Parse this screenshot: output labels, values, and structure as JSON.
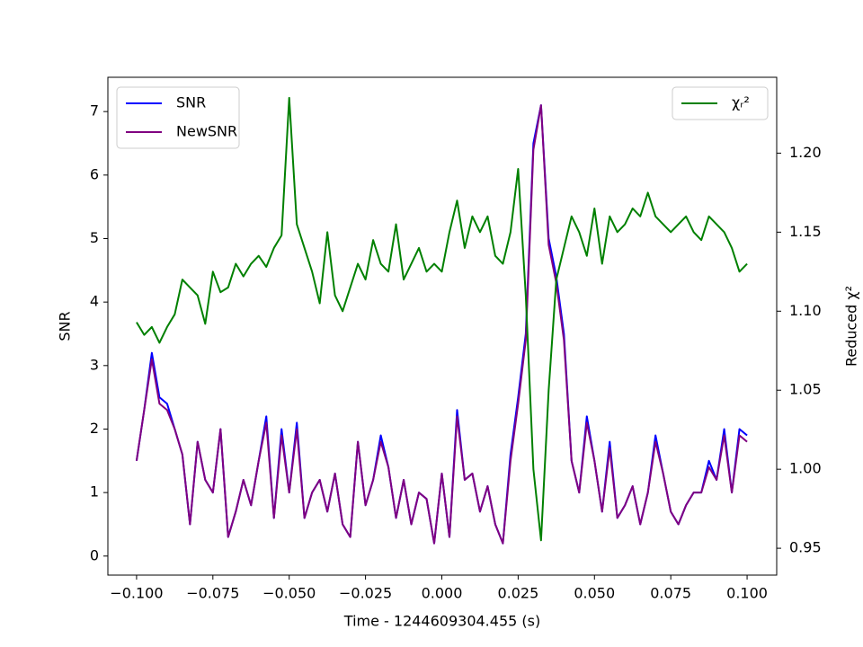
{
  "chart_data": {
    "type": "line",
    "x_label": "Time - 1244609304.455 (s)",
    "y_label": "SNR",
    "y2_label": "Reduced χ²",
    "x": [
      -0.1,
      -0.0975,
      -0.095,
      -0.0925,
      -0.09,
      -0.0875,
      -0.085,
      -0.0825,
      -0.08,
      -0.0775,
      -0.075,
      -0.0725,
      -0.07,
      -0.0675,
      -0.065,
      -0.0625,
      -0.06,
      -0.0575,
      -0.055,
      -0.0525,
      -0.05,
      -0.0475,
      -0.045,
      -0.0425,
      -0.04,
      -0.0375,
      -0.035,
      -0.0325,
      -0.03,
      -0.0275,
      -0.025,
      -0.0225,
      -0.02,
      -0.0175,
      -0.015,
      -0.0125,
      -0.01,
      -0.0075,
      -0.005,
      -0.0025,
      0.0,
      0.0025,
      0.005,
      0.0075,
      0.01,
      0.0125,
      0.015,
      0.0175,
      0.02,
      0.0225,
      0.025,
      0.0275,
      0.03,
      0.0325,
      0.035,
      0.0375,
      0.04,
      0.0425,
      0.045,
      0.0475,
      0.05,
      0.0525,
      0.055,
      0.0575,
      0.06,
      0.0625,
      0.065,
      0.0675,
      0.07,
      0.0725,
      0.075,
      0.0775,
      0.08,
      0.0825,
      0.085,
      0.0875,
      0.09,
      0.0925,
      0.095,
      0.0975,
      0.1
    ],
    "series": [
      {
        "name": "SNR",
        "color": "#0000ff",
        "axis": "y",
        "values": [
          1.5,
          2.3,
          3.2,
          2.5,
          2.4,
          2.0,
          1.6,
          0.5,
          1.8,
          1.2,
          1.0,
          2.0,
          0.3,
          0.7,
          1.2,
          0.8,
          1.5,
          2.2,
          0.6,
          2.0,
          1.0,
          2.1,
          0.6,
          1.0,
          1.2,
          0.7,
          1.3,
          0.5,
          0.3,
          1.8,
          0.8,
          1.2,
          1.9,
          1.4,
          0.6,
          1.2,
          0.5,
          1.0,
          0.9,
          0.2,
          1.3,
          0.3,
          2.3,
          1.2,
          1.3,
          0.7,
          1.1,
          0.5,
          0.2,
          1.6,
          2.5,
          3.5,
          6.5,
          7.1,
          5.0,
          4.4,
          3.5,
          1.5,
          1.0,
          2.2,
          1.5,
          0.7,
          1.8,
          0.6,
          0.8,
          1.1,
          0.5,
          1.0,
          1.9,
          1.3,
          0.7,
          0.5,
          0.8,
          1.0,
          1.0,
          1.5,
          1.2,
          2.0,
          1.0,
          2.0,
          1.9
        ]
      },
      {
        "name": "NewSNR",
        "color": "#800080",
        "axis": "y",
        "values": [
          1.5,
          2.3,
          3.1,
          2.4,
          2.3,
          2.0,
          1.6,
          0.5,
          1.8,
          1.2,
          1.0,
          2.0,
          0.3,
          0.7,
          1.2,
          0.8,
          1.5,
          2.1,
          0.6,
          1.9,
          1.0,
          2.0,
          0.6,
          1.0,
          1.2,
          0.7,
          1.3,
          0.5,
          0.3,
          1.8,
          0.8,
          1.2,
          1.8,
          1.4,
          0.6,
          1.2,
          0.5,
          1.0,
          0.9,
          0.2,
          1.3,
          0.3,
          2.2,
          1.2,
          1.3,
          0.7,
          1.1,
          0.5,
          0.2,
          1.5,
          2.4,
          3.4,
          6.4,
          7.1,
          4.9,
          4.3,
          3.4,
          1.5,
          1.0,
          2.1,
          1.5,
          0.7,
          1.7,
          0.6,
          0.8,
          1.1,
          0.5,
          1.0,
          1.8,
          1.3,
          0.7,
          0.5,
          0.8,
          1.0,
          1.0,
          1.4,
          1.2,
          1.9,
          1.0,
          1.9,
          1.8
        ]
      },
      {
        "name": "χᵣ²",
        "color": "#008000",
        "axis": "y2",
        "values": [
          1.093,
          1.085,
          1.09,
          1.08,
          1.09,
          1.098,
          1.12,
          1.115,
          1.11,
          1.092,
          1.125,
          1.112,
          1.115,
          1.13,
          1.122,
          1.13,
          1.135,
          1.128,
          1.14,
          1.148,
          1.235,
          1.155,
          1.14,
          1.125,
          1.105,
          1.15,
          1.11,
          1.1,
          1.115,
          1.13,
          1.12,
          1.145,
          1.13,
          1.125,
          1.155,
          1.12,
          1.13,
          1.14,
          1.125,
          1.13,
          1.125,
          1.15,
          1.17,
          1.14,
          1.16,
          1.15,
          1.16,
          1.135,
          1.13,
          1.15,
          1.19,
          1.11,
          1.0,
          0.955,
          1.05,
          1.12,
          1.14,
          1.16,
          1.15,
          1.135,
          1.165,
          1.13,
          1.16,
          1.15,
          1.155,
          1.165,
          1.16,
          1.175,
          1.16,
          1.155,
          1.15,
          1.155,
          1.16,
          1.15,
          1.145,
          1.16,
          1.155,
          1.15,
          1.14,
          1.125,
          1.13
        ]
      }
    ],
    "xlim": [
      -0.1094,
      0.1097
    ],
    "xticks": [
      {
        "value": -0.1,
        "label": "−0.100"
      },
      {
        "value": -0.075,
        "label": "−0.075"
      },
      {
        "value": -0.05,
        "label": "−0.050"
      },
      {
        "value": -0.025,
        "label": "−0.025"
      },
      {
        "value": 0,
        "label": "0.000"
      },
      {
        "value": 0.025,
        "label": "0.025"
      },
      {
        "value": 0.05,
        "label": "0.050"
      },
      {
        "value": 0.075,
        "label": "0.075"
      },
      {
        "value": 0.1,
        "label": "0.100"
      }
    ],
    "ylim": [
      -0.3,
      7.54
    ],
    "yticks": [
      0,
      1,
      2,
      3,
      4,
      5,
      6,
      7
    ],
    "y2lim": [
      0.933,
      1.248
    ],
    "y2ticks": [
      0.95,
      {
        "value": 1.0,
        "label": "1.00"
      },
      1.05,
      {
        "value": 1.1,
        "label": "1.10"
      },
      1.15,
      {
        "value": 1.2,
        "label": "1.20"
      }
    ],
    "grid": false,
    "legend": "upper left",
    "legend2": "upper right"
  }
}
